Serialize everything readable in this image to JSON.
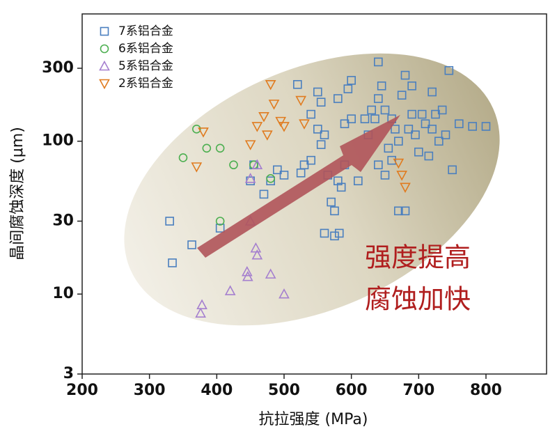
{
  "chart_data": {
    "type": "scatter",
    "x_label": "抗拉强度 (MPa)",
    "y_label": "晶间腐蚀深度 (μm)",
    "annotation_lines": [
      "强度提高",
      "腐蚀加快"
    ],
    "xlim": [
      200,
      890
    ],
    "xticks": [
      200,
      300,
      400,
      500,
      600,
      700,
      800
    ],
    "ylim": [
      3,
      680
    ],
    "yticks": [
      3,
      10,
      30,
      100,
      300
    ],
    "y_scale": "log",
    "series": [
      {
        "name": "7系铝合金",
        "color": "#4a7fbf",
        "marker": "square",
        "x": [
          330,
          334,
          363,
          405,
          450,
          455,
          470,
          480,
          490,
          500,
          520,
          525,
          530,
          540,
          540,
          550,
          550,
          555,
          555,
          560,
          560,
          565,
          570,
          575,
          575,
          580,
          580,
          585,
          590,
          590,
          595,
          600,
          600,
          610,
          620,
          625,
          630,
          635,
          640,
          640,
          645,
          650,
          650,
          655,
          660,
          665,
          670,
          670,
          675,
          680,
          680,
          685,
          690,
          695,
          700,
          705,
          710,
          715,
          720,
          725,
          730,
          735,
          740,
          745,
          750,
          760,
          780,
          800,
          720,
          690,
          660,
          640,
          582
        ],
        "values": [
          30,
          16,
          21,
          27,
          55,
          70,
          45,
          55,
          65,
          60,
          235,
          62,
          70,
          150,
          75,
          210,
          120,
          180,
          95,
          25,
          110,
          60,
          40,
          35,
          24,
          55,
          190,
          50,
          130,
          70,
          220,
          250,
          140,
          55,
          140,
          110,
          160,
          140,
          70,
          330,
          230,
          160,
          60,
          90,
          75,
          120,
          100,
          35,
          200,
          35,
          270,
          120,
          150,
          110,
          85,
          150,
          130,
          80,
          120,
          150,
          100,
          160,
          110,
          290,
          65,
          130,
          125,
          125,
          210,
          230,
          140,
          190,
          25
        ]
      },
      {
        "name": "6系铝合金",
        "color": "#4caf50",
        "marker": "circle",
        "x": [
          370,
          350,
          385,
          405,
          425,
          455,
          480,
          405
        ],
        "values": [
          120,
          78,
          90,
          90,
          70,
          70,
          57,
          30
        ]
      },
      {
        "name": "5系铝合金",
        "color": "#a57fcf",
        "marker": "triangle",
        "x": [
          378,
          376,
          420,
          445,
          446,
          450,
          450,
          458,
          460,
          460,
          480,
          500
        ],
        "values": [
          8.5,
          7.5,
          10.5,
          14,
          13,
          30,
          57,
          20,
          70,
          18,
          13.5,
          10
        ]
      },
      {
        "name": "2系铝合金",
        "color": "#e07b1f",
        "marker": "triangle-down",
        "x": [
          370,
          380,
          450,
          460,
          470,
          475,
          480,
          485,
          495,
          500,
          525,
          530,
          670,
          675,
          680
        ],
        "values": [
          68,
          115,
          95,
          125,
          145,
          110,
          235,
          175,
          135,
          125,
          185,
          130,
          72,
          60,
          50
        ]
      }
    ]
  }
}
